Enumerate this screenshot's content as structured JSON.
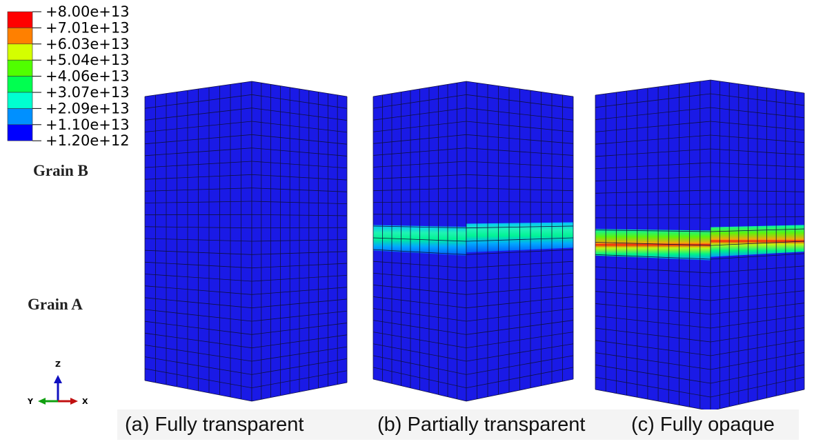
{
  "legend": {
    "labels": [
      "+8.00e+13",
      "+7.01e+13",
      "+6.03e+13",
      "+5.04e+13",
      "+4.06e+13",
      "+3.07e+13",
      "+2.09e+13",
      "+1.10e+13",
      "+1.20e+12"
    ]
  },
  "grain_labels": {
    "top": "Grain B",
    "bottom": "Grain A"
  },
  "triad": {
    "z": "Z",
    "y": "Y",
    "x": "X"
  },
  "captions": [
    "(a) Fully transparent",
    "(b) Partially transparent",
    "(c) Fully opaque"
  ]
}
